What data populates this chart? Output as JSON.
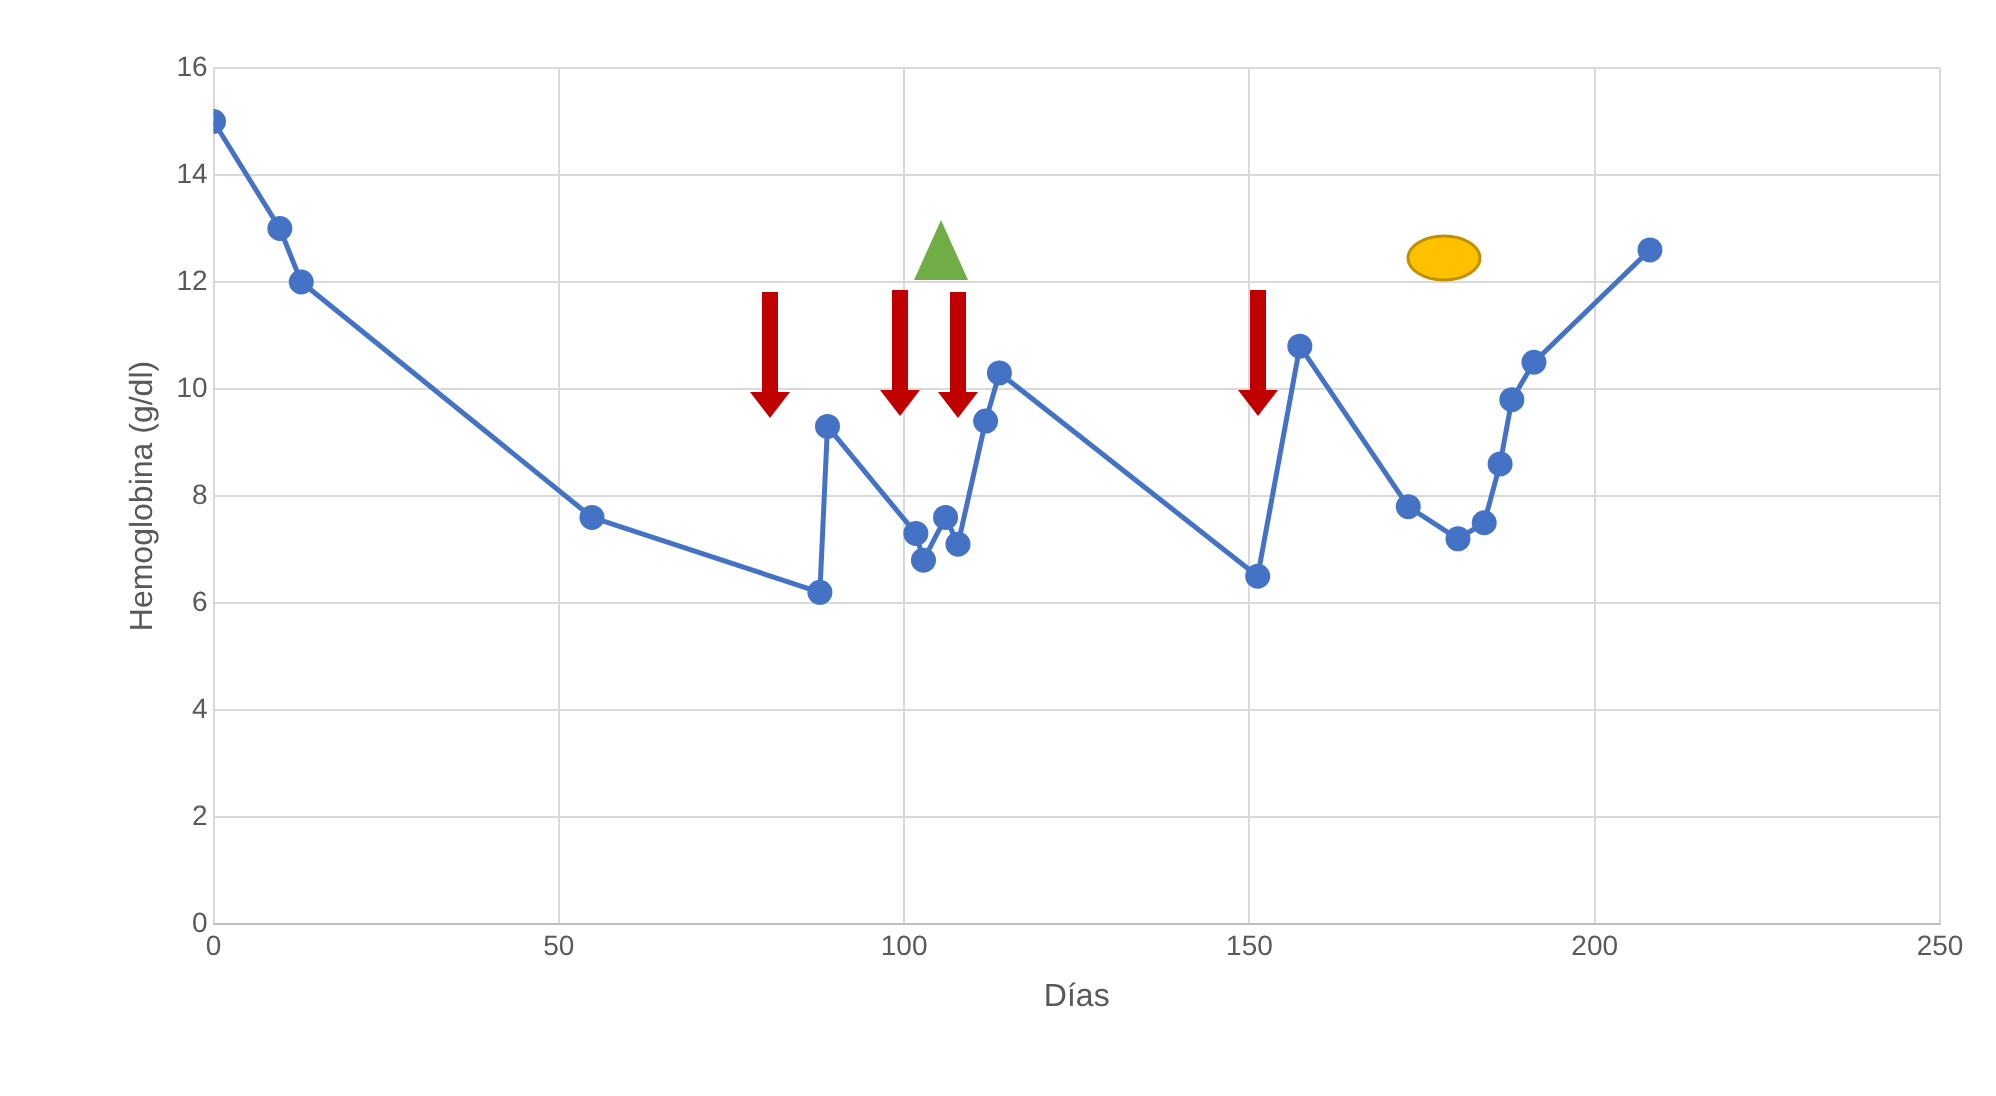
{
  "chart_data": {
    "type": "line",
    "xlabel": "Días",
    "ylabel": "Hemoglobina (g/dl)",
    "x": [
      0,
      9.6,
      12.7,
      54.8,
      87.8,
      88.9,
      101.7,
      102.8,
      106,
      107.8,
      111.8,
      113.8,
      151.2,
      157.3,
      173,
      180.2,
      184,
      186.3,
      188,
      191.2,
      208
    ],
    "series": [
      {
        "color": "#4472c4",
        "values": [
          15,
          13,
          12,
          7.6,
          6.2,
          9.3,
          7.3,
          6.8,
          7.6,
          7.1,
          9.4,
          10.3,
          6.5,
          10.8,
          7.8,
          7.2,
          7.5,
          8.6,
          9.8,
          10.5,
          12.6
        ]
      }
    ],
    "xlim": [
      0,
      250
    ],
    "xticks": [
      0,
      50,
      100,
      150,
      200,
      250
    ],
    "ylim": [
      0,
      16
    ],
    "yticks": [
      0,
      2,
      4,
      6,
      8,
      10,
      12,
      14,
      16
    ],
    "grid": true,
    "marker": "circle",
    "line_style": "solid"
  }
}
